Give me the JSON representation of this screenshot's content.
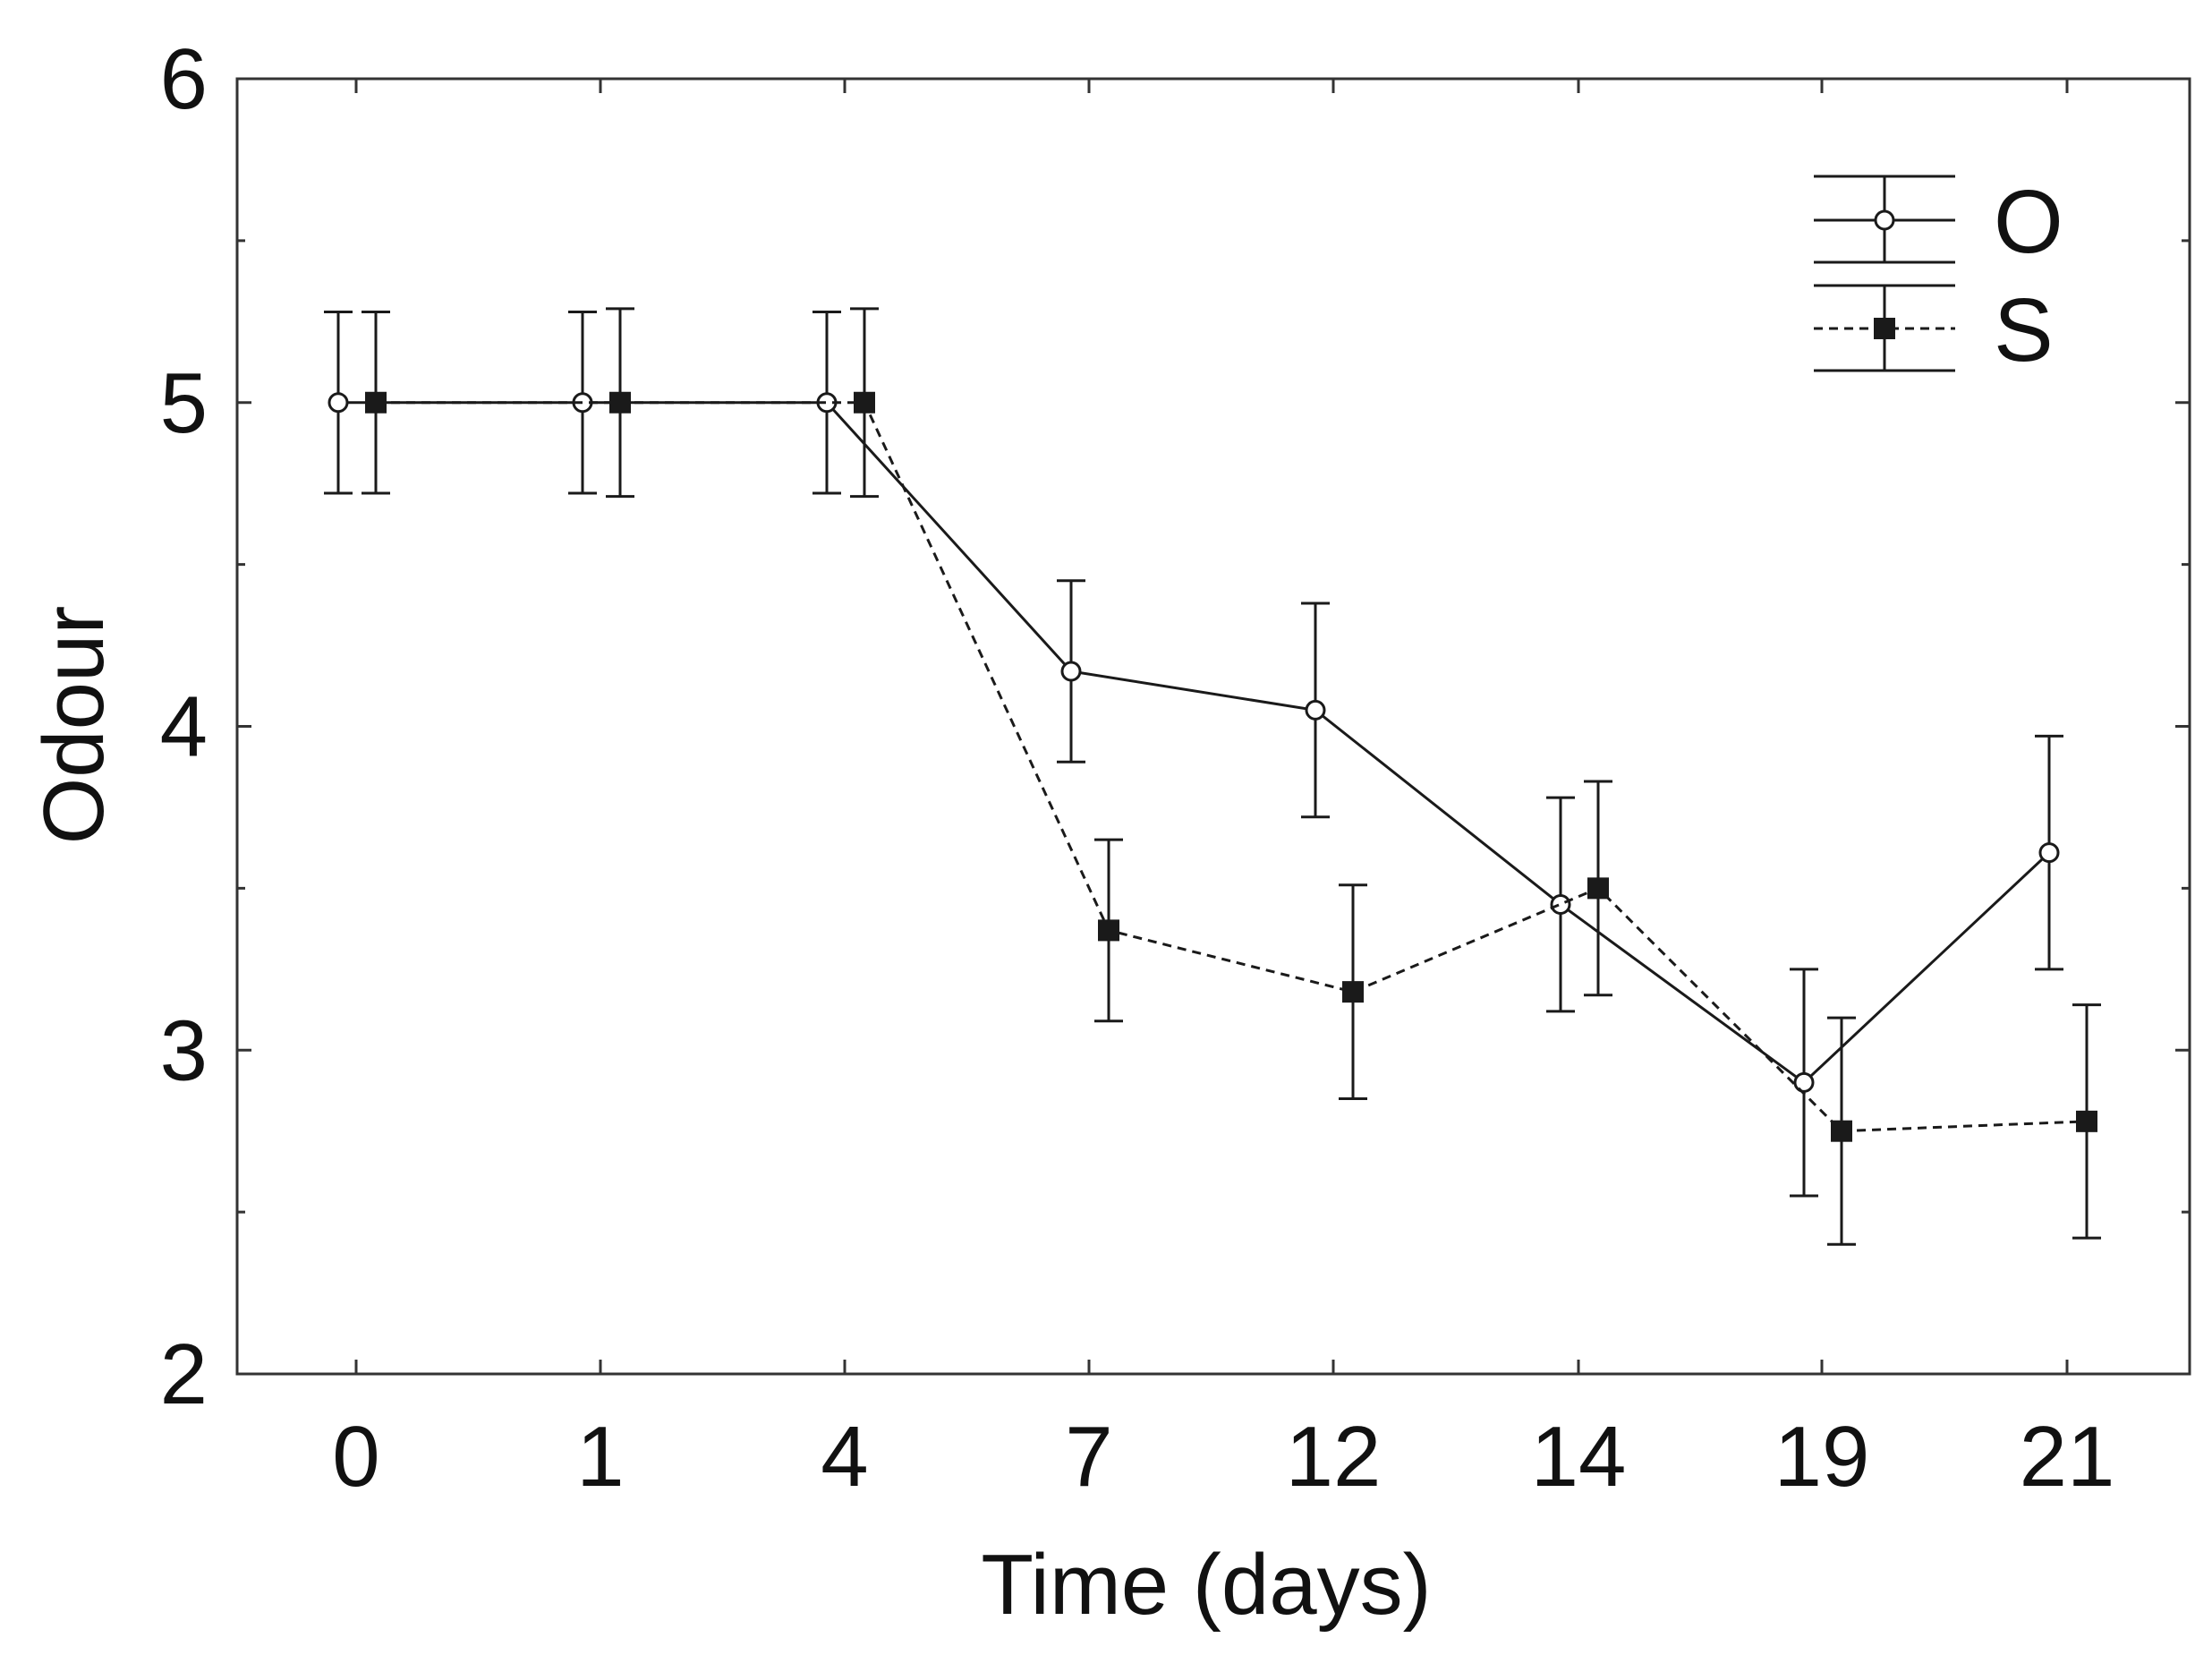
{
  "chart_data": {
    "type": "line",
    "title": "",
    "xlabel": "Time (days)",
    "ylabel": "Odour",
    "categories": [
      "0",
      "1",
      "4",
      "7",
      "12",
      "14",
      "19",
      "21"
    ],
    "ylim": [
      2,
      6
    ],
    "yticks": [
      2,
      3,
      4,
      5,
      6
    ],
    "grid": false,
    "legend_position": "top-right",
    "series": [
      {
        "name": "O",
        "marker": "open-circle",
        "line": "solid",
        "values": [
          5.0,
          5.0,
          5.0,
          4.17,
          4.05,
          3.45,
          2.9,
          3.61
        ],
        "errors": [
          0.28,
          0.28,
          0.28,
          0.28,
          0.33,
          0.33,
          0.35,
          0.36
        ]
      },
      {
        "name": "S",
        "marker": "filled-square",
        "line": "dashed",
        "values": [
          5.0,
          5.0,
          5.0,
          3.37,
          3.18,
          3.5,
          2.75,
          2.78
        ],
        "errors": [
          0.28,
          0.29,
          0.29,
          0.28,
          0.33,
          0.33,
          0.35,
          0.36
        ]
      }
    ],
    "colors": {
      "line": "#1a1a1a",
      "frame": "#333333",
      "marker_fill_open": "#ffffff"
    }
  }
}
